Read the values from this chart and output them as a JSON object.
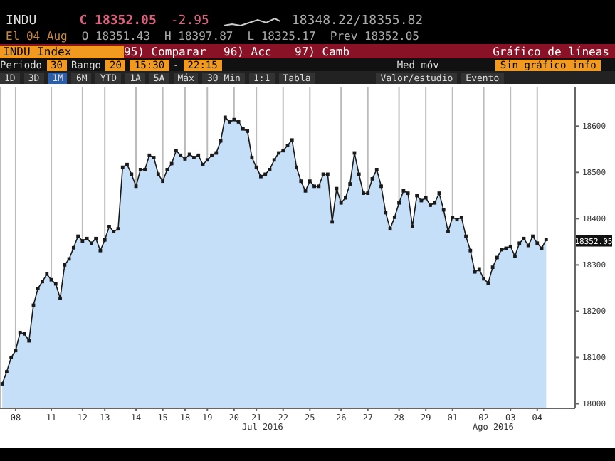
{
  "chart_data": {
    "type": "area",
    "title": "INDU Index",
    "annotations": [
      "INDU",
      "C 18352.05",
      "-2.95",
      "18348.22/18355.82",
      "El 04 Aug",
      "O 18351.43",
      "H 18397.87",
      "L 18325.17",
      "Prev 18352.05",
      "95) Comparar",
      "96) Acc",
      "97) Camb",
      "Gráfico de líneas",
      "Periodo",
      "30",
      "Rango",
      "20",
      "15:30",
      "-",
      "22:15",
      "Med móv",
      "Sin gráfico info",
      "1D",
      "3D",
      "1M",
      "6M",
      "YTD",
      "1A",
      "5A",
      "Máx",
      "30 Min",
      "1:1",
      "Tabla",
      "Valor/estudio",
      "Evento",
      "Jul 2016",
      "Ago 2016",
      {
        "text": "18352.05",
        "y": 18352.05
      }
    ],
    "categories": [
      null,
      null,
      null,
      "08",
      null,
      null,
      null,
      null,
      null,
      null,
      null,
      "11",
      null,
      null,
      null,
      null,
      null,
      null,
      "12",
      null,
      null,
      null,
      null,
      "13",
      null,
      null,
      null,
      null,
      null,
      null,
      "14",
      null,
      null,
      null,
      null,
      null,
      "15",
      null,
      null,
      null,
      null,
      "18",
      null,
      null,
      null,
      null,
      "19",
      null,
      null,
      null,
      null,
      null,
      "20",
      null,
      null,
      null,
      null,
      "21",
      null,
      null,
      null,
      null,
      null,
      "22",
      null,
      null,
      null,
      null,
      null,
      "25",
      null,
      null,
      null,
      null,
      null,
      null,
      "26",
      null,
      null,
      null,
      null,
      null,
      "27",
      null,
      null,
      null,
      null,
      null,
      null,
      "28",
      null,
      null,
      null,
      null,
      null,
      "29",
      null,
      null,
      null,
      null,
      null,
      "01",
      null,
      null,
      null,
      null,
      null,
      null,
      "02",
      null,
      null,
      null,
      null,
      null,
      "03",
      null,
      null,
      null,
      null,
      null,
      "04",
      null,
      null,
      null,
      null,
      null,
      null,
      null,
      null
    ],
    "series": [
      {
        "color": "#c5dff8",
        "values": [
          18043,
          18069,
          18100,
          18115,
          18154,
          18151,
          18136,
          18213,
          18249,
          18264,
          18280,
          18268,
          18259,
          18228,
          18300,
          18313,
          18337,
          18362,
          18352,
          18357,
          18347,
          18357,
          18331,
          18354,
          18383,
          18372,
          18378,
          18511,
          18517,
          18496,
          18470,
          18506,
          18506,
          18537,
          18532,
          18496,
          18481,
          18506,
          18519,
          18547,
          18537,
          18529,
          18539,
          18532,
          18537,
          18517,
          18527,
          18537,
          18542,
          18568,
          18619,
          18609,
          18614,
          18609,
          18594,
          18589,
          18532,
          18511,
          18491,
          18496,
          18506,
          18527,
          18542,
          18547,
          18558,
          18570,
          18511,
          18481,
          18460,
          18481,
          18470,
          18470,
          18496,
          18496,
          18393,
          18465,
          18434,
          18445,
          18475,
          18542,
          18496,
          18455,
          18455,
          18486,
          18506,
          18470,
          18413,
          18378,
          18403,
          18434,
          18460,
          18455,
          18383,
          18450,
          18439,
          18445,
          18429,
          18434,
          18455,
          18419,
          18372,
          18403,
          18398,
          18403,
          18362,
          18331,
          18285,
          18290,
          18270,
          18261,
          18295,
          18316,
          18333,
          18336,
          18340,
          18319,
          18347,
          18357,
          18342,
          18362,
          18347,
          18336,
          18355,
          null,
          null,
          null,
          null,
          null,
          null
        ]
      }
    ],
    "ylim": [
      17990,
      18685
    ],
    "yticks": [
      18000,
      18100,
      18200,
      18300,
      18400,
      18500,
      18600
    ],
    "grid": "x",
    "marker": "square",
    "line_style": "solid"
  }
}
